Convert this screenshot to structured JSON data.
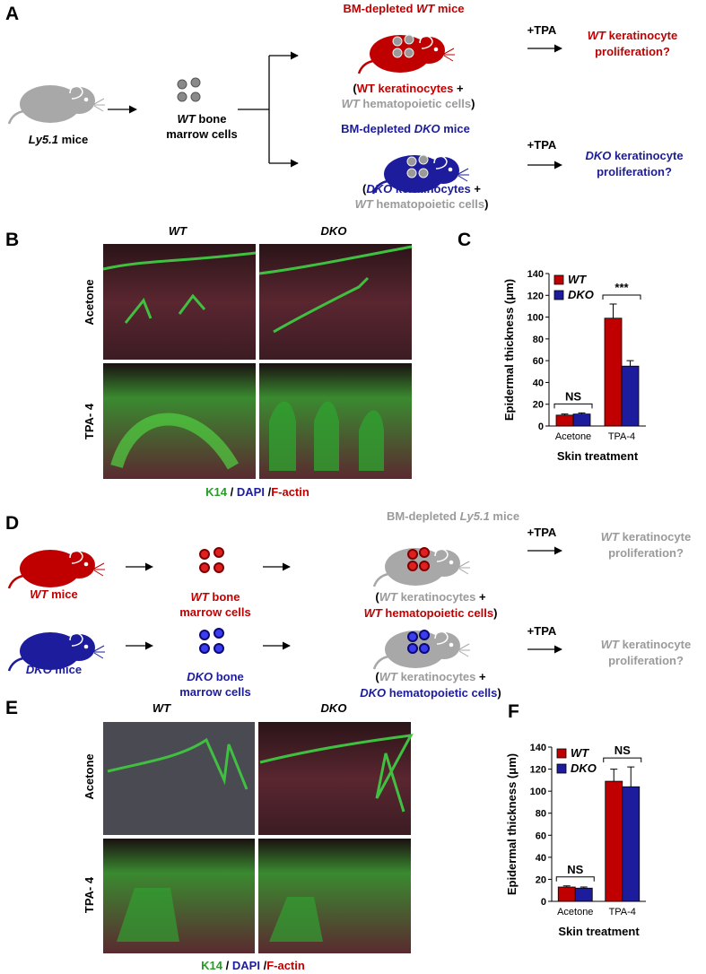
{
  "panel_labels": [
    "A",
    "B",
    "C",
    "D",
    "E",
    "F"
  ],
  "panel_a": {
    "donor": [
      "Ly5.1",
      " mice"
    ],
    "cells": [
      "WT",
      " bone",
      "marrow cells"
    ],
    "recipients": [
      {
        "title": [
          "BM-depleted ",
          "WT",
          " mice"
        ],
        "line1": [
          "(",
          "WT keratinocytes",
          " +"
        ],
        "line2": [
          "WT",
          " hematopoietic cells",
          ")"
        ],
        "treatment": "+TPA",
        "outcome": [
          "WT",
          " keratinocyte",
          "proliferation?"
        ]
      },
      {
        "title": [
          "BM-depleted ",
          "DKO",
          " mice"
        ],
        "line1": [
          "(",
          "DKO",
          " keratinocytes",
          " +"
        ],
        "line2": [
          "WT",
          " hematopoietic cells",
          ")"
        ],
        "treatment": "+TPA",
        "outcome": [
          "DKO",
          " keratinocyte",
          "proliferation?"
        ]
      }
    ]
  },
  "panel_b": {
    "column_headers": [
      "WT",
      "DKO"
    ],
    "row_labels": [
      "Acetone",
      "TPA- 4"
    ],
    "stain_legend": [
      "K14",
      "DAPI",
      "F-actin"
    ],
    "separator": "/"
  },
  "panel_d": {
    "donors": [
      {
        "name": [
          "WT",
          " mice"
        ],
        "cells": [
          "WT",
          " bone",
          "marrow cells"
        ]
      },
      {
        "name": [
          "DKO",
          " mice"
        ],
        "cells": [
          "DKO",
          " bone",
          "marrow cells"
        ]
      }
    ],
    "recipient_title": [
      "BM-depleted ",
      "Ly5.1",
      " mice"
    ],
    "recipients": [
      {
        "line1": [
          "(",
          "WT",
          " keratinocytes",
          " +"
        ],
        "line2": [
          "WT",
          " hematopoietic cells",
          ")"
        ],
        "treatment": "+TPA",
        "outcome": [
          "WT",
          " keratinocyte",
          "proliferation?"
        ]
      },
      {
        "line1": [
          "(",
          "WT",
          " keratinocytes",
          " +"
        ],
        "line2": [
          "DKO",
          " hematopoietic cells",
          ")"
        ],
        "treatment": "+TPA",
        "outcome": [
          "WT",
          " keratinocyte",
          "proliferation?"
        ]
      }
    ]
  },
  "panel_e": {
    "column_headers": [
      "WT",
      "DKO"
    ],
    "row_labels": [
      "Acetone",
      "TPA- 4"
    ],
    "stain_legend": [
      "K14",
      "DAPI",
      "F-actin"
    ],
    "separator": "/"
  },
  "chart_data": [
    {
      "type": "bar",
      "y_label": "Epidermal thickness (μm)",
      "x_label": "Skin treatment",
      "categories": [
        "Acetone",
        "TPA-4"
      ],
      "series": [
        {
          "name": "WT",
          "color": "#c00000",
          "values": [
            10,
            99
          ],
          "errors": [
            1,
            13
          ]
        },
        {
          "name": "DKO",
          "color": "#1c1c9c",
          "values": [
            11,
            55
          ],
          "errors": [
            1,
            5
          ]
        }
      ],
      "annotations": [
        "NS",
        "***"
      ],
      "ylim": [
        0,
        140
      ],
      "yticks": [
        0,
        20,
        40,
        60,
        80,
        100,
        120,
        140
      ],
      "legend": "upper left"
    },
    {
      "type": "bar",
      "y_label": "Epidermal thickness (μm)",
      "x_label": "Skin treatment",
      "categories": [
        "Acetone",
        "TPA-4"
      ],
      "series": [
        {
          "name": "WT",
          "color": "#c00000",
          "values": [
            13,
            109
          ],
          "errors": [
            1,
            11
          ]
        },
        {
          "name": "DKO",
          "color": "#1c1c9c",
          "values": [
            12,
            104
          ],
          "errors": [
            1,
            18
          ]
        }
      ],
      "annotations": [
        "NS",
        "NS"
      ],
      "ylim": [
        0,
        140
      ],
      "yticks": [
        0,
        20,
        40,
        60,
        80,
        100,
        120,
        140
      ],
      "legend": "upper left"
    }
  ]
}
